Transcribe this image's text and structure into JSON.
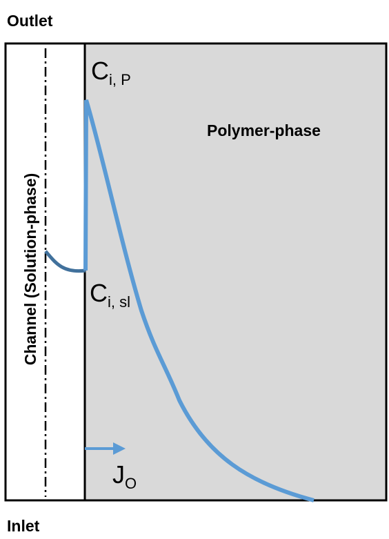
{
  "header": {
    "outlet": "Outlet",
    "inlet": "Inlet"
  },
  "regions": {
    "channel": "Channel (Solution-phase)",
    "polymer": "Polymer-phase"
  },
  "concentrations": [
    {
      "symbol": "C",
      "subscript": "i, P"
    },
    {
      "symbol": "C",
      "subscript": "i, sl"
    }
  ],
  "flux": {
    "symbol": "J",
    "subscript": "O"
  }
}
